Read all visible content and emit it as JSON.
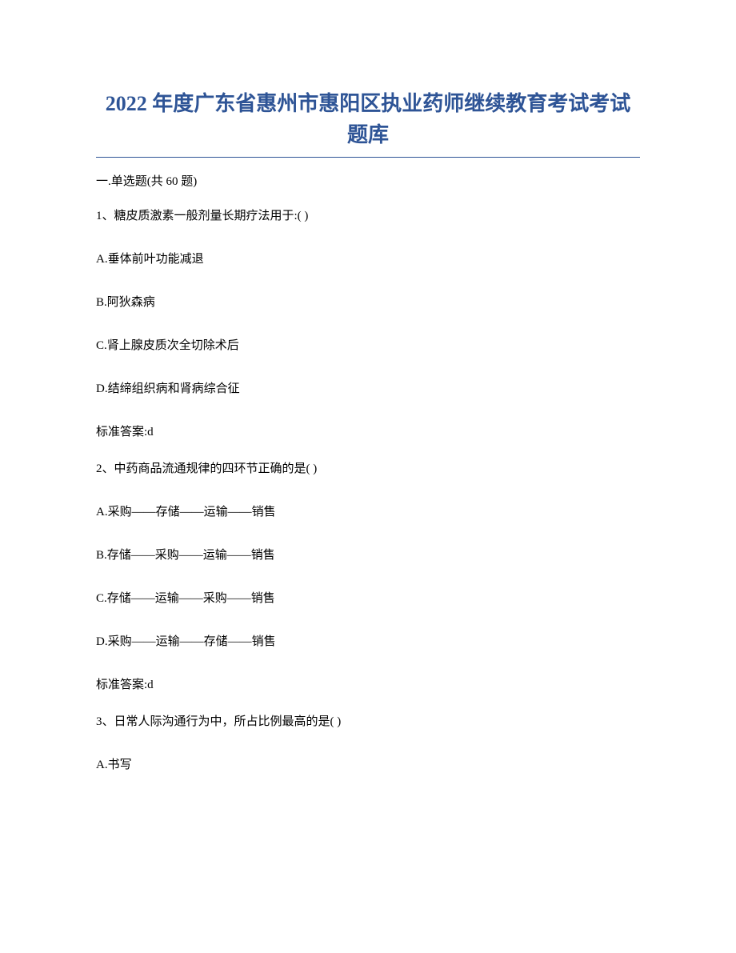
{
  "title": "2022 年度广东省惠州市惠阳区执业药师继续教育考试考试题库",
  "section_header": "一.单选题(共 60 题)",
  "questions": [
    {
      "text": "1、糖皮质激素一般剂量长期疗法用于:( )",
      "options": [
        "A.垂体前叶功能减退",
        "B.阿狄森病",
        "C.肾上腺皮质次全切除术后",
        "D.结缔组织病和肾病综合征"
      ],
      "answer": "标准答案:d"
    },
    {
      "text": "2、中药商品流通规律的四环节正确的是( )",
      "options": [
        "A.采购——存储——运输——销售",
        "B.存储——采购——运输——销售",
        "C.存储——运输——采购——销售",
        "D.采购——运输——存储——销售"
      ],
      "answer": "标准答案:d"
    },
    {
      "text": "3、日常人际沟通行为中，所占比例最高的是( )",
      "options": [
        "A.书写"
      ],
      "answer": ""
    }
  ],
  "colors": {
    "title_color": "#2e5496",
    "text_color": "#000000",
    "background": "#ffffff",
    "border_color": "#2e5496"
  },
  "typography": {
    "title_fontsize": 26,
    "body_fontsize": 15,
    "font_family": "SimSun"
  }
}
